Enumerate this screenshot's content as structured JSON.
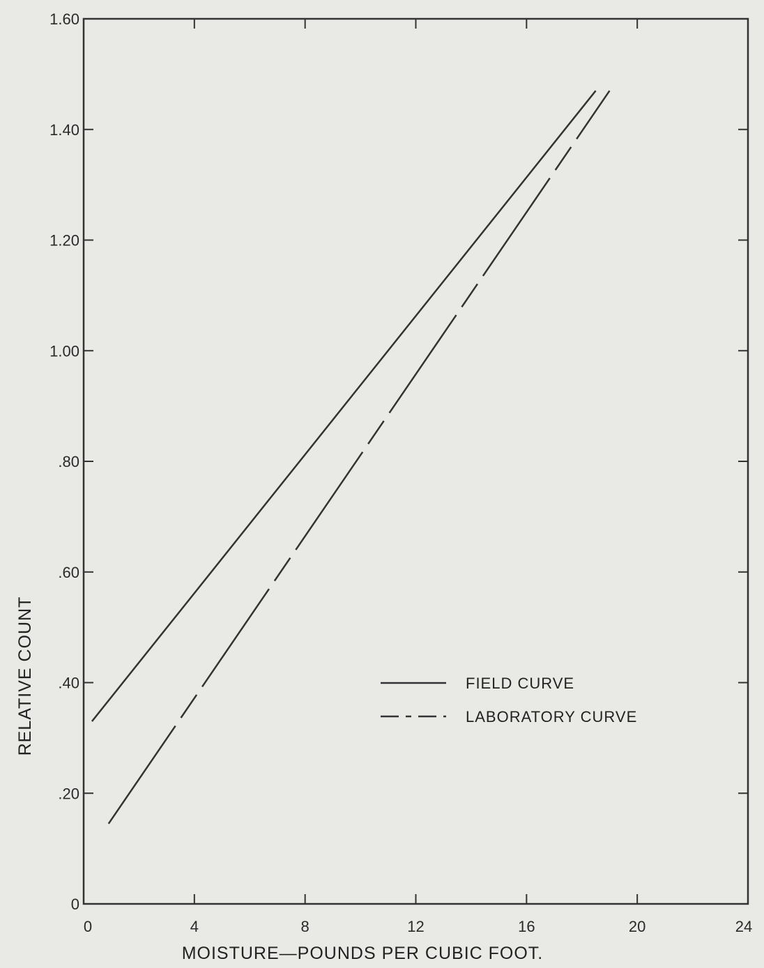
{
  "chart_data": {
    "type": "line",
    "title": "",
    "xlabel": "MOISTURE—POUNDS PER CUBIC FOOT.",
    "ylabel": "RELATIVE COUNT",
    "xlim": [
      0,
      24
    ],
    "ylim": [
      0,
      1.6
    ],
    "x_ticks": [
      0,
      4,
      8,
      12,
      16,
      20,
      24
    ],
    "x_tick_labels": [
      "0",
      "4",
      "8",
      "12",
      "16",
      "20",
      "24"
    ],
    "y_ticks": [
      0,
      0.2,
      0.4,
      0.6,
      0.8,
      1.0,
      1.2,
      1.4,
      1.6
    ],
    "y_tick_labels": [
      "0",
      ".20",
      ".40",
      ".60",
      ".80",
      "1.00",
      "1.20",
      "1.40",
      "1.60"
    ],
    "grid": false,
    "legend_position": "lower-right",
    "series": [
      {
        "name": "FIELD CURVE",
        "style": "solid",
        "color": "#333333",
        "x": [
          0.3,
          18.5
        ],
        "y": [
          0.33,
          1.47
        ]
      },
      {
        "name": "LABORATORY CURVE",
        "style": "dash-dot",
        "color": "#333333",
        "x": [
          0.9,
          19.0
        ],
        "y": [
          0.145,
          1.47
        ]
      }
    ]
  }
}
